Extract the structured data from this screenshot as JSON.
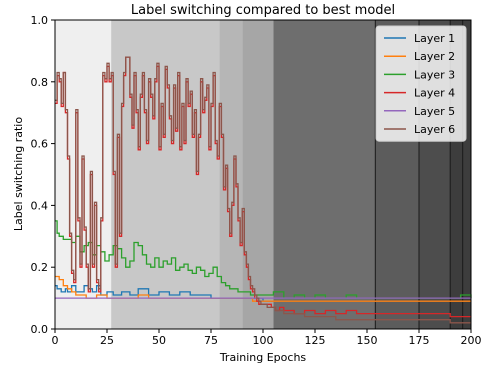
{
  "chart_data": {
    "type": "line",
    "title": "Label switching compared to best model",
    "xlabel": "Training Epochs",
    "ylabel": "Label switching ratio",
    "xlim": [
      0,
      200
    ],
    "ylim": [
      0,
      1.0
    ],
    "x_ticks": [
      0,
      25,
      50,
      75,
      100,
      125,
      150,
      175,
      200
    ],
    "y_ticks": [
      0.0,
      0.2,
      0.4,
      0.6,
      0.8,
      1.0
    ],
    "x_tick_labels": [
      "0",
      "25",
      "50",
      "75",
      "100",
      "125",
      "150",
      "175",
      "200"
    ],
    "y_tick_labels": [
      "0.0",
      "0.2",
      "0.4",
      "0.6",
      "0.8",
      "1.0"
    ],
    "legend_position": "top-right",
    "grid": false,
    "background_bands": [
      {
        "x_start": 0,
        "x_end": 27,
        "color": "#efefef"
      },
      {
        "x_start": 27,
        "x_end": 79,
        "color": "#c8c8c8"
      },
      {
        "x_start": 79,
        "x_end": 90,
        "color": "#b6b6b6"
      },
      {
        "x_start": 90,
        "x_end": 105,
        "color": "#a6a6a6"
      },
      {
        "x_start": 105,
        "x_end": 154,
        "color": "#6e6e6e"
      },
      {
        "x_start": 154,
        "x_end": 175,
        "color": "#5c5c5c"
      },
      {
        "x_start": 175,
        "x_end": 190,
        "color": "#4d4d4d"
      },
      {
        "x_start": 190,
        "x_end": 200,
        "color": "#3d3d3d"
      }
    ],
    "band_separators": [
      154,
      175,
      190,
      196
    ],
    "series": [
      {
        "name": "Layer 1",
        "color": "#1f77b4",
        "x": [
          0,
          1,
          3,
          5,
          6,
          8,
          10,
          12,
          14,
          16,
          18,
          20,
          22,
          25,
          28,
          32,
          36,
          40,
          45,
          50,
          55,
          60,
          65,
          70,
          75,
          80,
          85,
          90,
          95,
          100,
          105,
          110,
          115,
          120,
          125,
          130,
          135,
          140,
          145,
          150,
          155,
          160,
          165,
          170,
          175,
          180,
          185,
          190,
          195,
          200
        ],
        "y": [
          0.14,
          0.13,
          0.12,
          0.13,
          0.12,
          0.14,
          0.12,
          0.12,
          0.14,
          0.13,
          0.12,
          0.14,
          0.11,
          0.12,
          0.11,
          0.12,
          0.11,
          0.13,
          0.11,
          0.12,
          0.11,
          0.12,
          0.11,
          0.11,
          0.1,
          0.1,
          0.1,
          0.1,
          0.1,
          0.09,
          0.09,
          0.09,
          0.09,
          0.09,
          0.09,
          0.09,
          0.09,
          0.09,
          0.09,
          0.09,
          0.09,
          0.09,
          0.09,
          0.09,
          0.09,
          0.09,
          0.09,
          0.09,
          0.09,
          0.09
        ]
      },
      {
        "name": "Layer 2",
        "color": "#ff7f0e",
        "x": [
          0,
          2,
          4,
          6,
          8,
          10,
          12,
          15,
          18,
          20,
          25,
          30,
          35,
          40,
          45,
          50,
          55,
          60,
          65,
          70,
          75,
          80,
          85,
          90,
          95,
          100,
          105,
          110,
          115,
          120,
          125,
          130,
          135,
          140,
          145,
          150,
          155,
          160,
          165,
          170,
          175,
          180,
          185,
          190,
          195,
          200
        ],
        "y": [
          0.17,
          0.16,
          0.14,
          0.13,
          0.12,
          0.11,
          0.11,
          0.1,
          0.1,
          0.11,
          0.1,
          0.1,
          0.1,
          0.11,
          0.1,
          0.1,
          0.1,
          0.1,
          0.1,
          0.1,
          0.1,
          0.1,
          0.1,
          0.1,
          0.09,
          0.09,
          0.09,
          0.09,
          0.09,
          0.09,
          0.09,
          0.09,
          0.09,
          0.09,
          0.09,
          0.09,
          0.09,
          0.09,
          0.09,
          0.09,
          0.09,
          0.09,
          0.09,
          0.09,
          0.09,
          0.09
        ]
      },
      {
        "name": "Layer 3",
        "color": "#2ca02c",
        "x": [
          0,
          1,
          2,
          4,
          6,
          8,
          10,
          12,
          14,
          16,
          18,
          20,
          22,
          24,
          26,
          28,
          30,
          32,
          34,
          36,
          38,
          40,
          42,
          44,
          46,
          48,
          50,
          52,
          54,
          56,
          58,
          60,
          62,
          64,
          66,
          68,
          70,
          72,
          74,
          76,
          78,
          80,
          82,
          84,
          86,
          88,
          90,
          92,
          94,
          96,
          98,
          100,
          105,
          110,
          115,
          120,
          125,
          130,
          135,
          140,
          145,
          150,
          155,
          160,
          165,
          170,
          175,
          180,
          185,
          190,
          195,
          200
        ],
        "y": [
          0.35,
          0.31,
          0.3,
          0.29,
          0.29,
          0.28,
          0.3,
          0.25,
          0.27,
          0.28,
          0.24,
          0.27,
          0.25,
          0.22,
          0.24,
          0.27,
          0.26,
          0.23,
          0.2,
          0.22,
          0.28,
          0.27,
          0.24,
          0.21,
          0.2,
          0.23,
          0.2,
          0.22,
          0.21,
          0.23,
          0.19,
          0.2,
          0.21,
          0.19,
          0.18,
          0.2,
          0.19,
          0.17,
          0.18,
          0.2,
          0.17,
          0.15,
          0.14,
          0.13,
          0.13,
          0.12,
          0.12,
          0.12,
          0.11,
          0.11,
          0.11,
          0.11,
          0.12,
          0.1,
          0.11,
          0.1,
          0.11,
          0.1,
          0.1,
          0.11,
          0.1,
          0.1,
          0.1,
          0.1,
          0.1,
          0.1,
          0.1,
          0.1,
          0.1,
          0.1,
          0.11,
          0.1
        ]
      },
      {
        "name": "Layer 4",
        "color": "#d62728",
        "x": [
          0,
          1,
          2,
          3,
          4,
          5,
          6,
          7,
          8,
          9,
          10,
          11,
          12,
          13,
          14,
          15,
          16,
          17,
          18,
          19,
          20,
          21,
          22,
          23,
          24,
          25,
          26,
          27,
          28,
          29,
          30,
          31,
          32,
          33,
          34,
          35,
          36,
          37,
          38,
          39,
          40,
          41,
          42,
          43,
          44,
          45,
          46,
          47,
          48,
          49,
          50,
          51,
          52,
          53,
          54,
          55,
          56,
          57,
          58,
          59,
          60,
          61,
          62,
          63,
          64,
          65,
          66,
          67,
          68,
          69,
          70,
          71,
          72,
          73,
          74,
          75,
          76,
          77,
          78,
          79,
          80,
          81,
          82,
          83,
          84,
          85,
          86,
          87,
          88,
          89,
          90,
          91,
          92,
          93,
          94,
          95,
          96,
          97,
          98,
          99,
          100,
          102,
          104,
          106,
          108,
          110,
          115,
          120,
          125,
          130,
          135,
          140,
          145,
          150,
          155,
          160,
          165,
          170,
          175,
          180,
          185,
          190,
          195,
          200
        ],
        "y": [
          0.73,
          0.82,
          0.8,
          0.72,
          0.83,
          0.7,
          0.55,
          0.3,
          0.18,
          0.15,
          0.7,
          0.35,
          0.2,
          0.55,
          0.32,
          0.2,
          0.12,
          0.5,
          0.2,
          0.4,
          0.15,
          0.12,
          0.35,
          0.82,
          0.8,
          0.85,
          0.8,
          0.82,
          0.5,
          0.2,
          0.62,
          0.3,
          0.72,
          0.82,
          0.88,
          0.88,
          0.75,
          0.65,
          0.82,
          0.7,
          0.58,
          0.75,
          0.82,
          0.7,
          0.6,
          0.8,
          0.75,
          0.68,
          0.8,
          0.85,
          0.58,
          0.72,
          0.62,
          0.84,
          0.78,
          0.68,
          0.6,
          0.78,
          0.64,
          0.82,
          0.58,
          0.72,
          0.6,
          0.8,
          0.72,
          0.76,
          0.62,
          0.7,
          0.5,
          0.62,
          0.8,
          0.7,
          0.74,
          0.78,
          0.58,
          0.72,
          0.82,
          0.6,
          0.55,
          0.72,
          0.62,
          0.45,
          0.52,
          0.38,
          0.3,
          0.4,
          0.55,
          0.46,
          0.35,
          0.27,
          0.38,
          0.24,
          0.2,
          0.16,
          0.13,
          0.12,
          0.1,
          0.09,
          0.08,
          0.08,
          0.08,
          0.08,
          0.07,
          0.06,
          0.07,
          0.06,
          0.05,
          0.06,
          0.05,
          0.06,
          0.05,
          0.06,
          0.05,
          0.05,
          0.05,
          0.05,
          0.05,
          0.05,
          0.05,
          0.05,
          0.05,
          0.04,
          0.04,
          0.04
        ]
      },
      {
        "name": "Layer 5",
        "color": "#9467bd",
        "x": [
          0,
          3,
          6,
          9,
          12,
          15,
          18,
          21,
          25,
          30,
          40,
          50,
          60,
          70,
          80,
          90,
          100,
          110,
          120,
          130,
          140,
          150,
          160,
          170,
          180,
          190,
          200
        ],
        "y": [
          0.1,
          0.1,
          0.1,
          0.1,
          0.1,
          0.1,
          0.1,
          0.1,
          0.1,
          0.1,
          0.1,
          0.1,
          0.1,
          0.1,
          0.1,
          0.1,
          0.1,
          0.1,
          0.1,
          0.1,
          0.1,
          0.1,
          0.1,
          0.1,
          0.1,
          0.1,
          0.1
        ]
      },
      {
        "name": "Layer 6",
        "color": "#8c564b",
        "x": [
          0,
          1,
          2,
          3,
          4,
          5,
          6,
          7,
          8,
          9,
          10,
          11,
          12,
          13,
          14,
          15,
          16,
          17,
          18,
          19,
          20,
          21,
          22,
          23,
          24,
          25,
          26,
          27,
          28,
          29,
          30,
          31,
          32,
          33,
          34,
          35,
          36,
          37,
          38,
          39,
          40,
          41,
          42,
          43,
          44,
          45,
          46,
          47,
          48,
          49,
          50,
          51,
          52,
          53,
          54,
          55,
          56,
          57,
          58,
          59,
          60,
          61,
          62,
          63,
          64,
          65,
          66,
          67,
          68,
          69,
          70,
          71,
          72,
          73,
          74,
          75,
          76,
          77,
          78,
          79,
          80,
          81,
          82,
          83,
          84,
          85,
          86,
          87,
          88,
          89,
          90,
          91,
          92,
          93,
          94,
          95,
          96,
          97,
          98,
          99,
          100,
          102,
          104,
          106,
          108,
          110,
          115,
          120,
          125,
          130,
          135,
          140,
          145,
          150,
          155,
          160,
          165,
          170,
          175,
          180,
          185,
          190,
          195,
          200
        ],
        "y": [
          0.74,
          0.83,
          0.81,
          0.73,
          0.83,
          0.71,
          0.56,
          0.31,
          0.19,
          0.16,
          0.71,
          0.36,
          0.21,
          0.56,
          0.33,
          0.21,
          0.13,
          0.51,
          0.21,
          0.41,
          0.16,
          0.13,
          0.36,
          0.83,
          0.81,
          0.86,
          0.81,
          0.83,
          0.51,
          0.21,
          0.63,
          0.31,
          0.73,
          0.83,
          0.88,
          0.88,
          0.76,
          0.66,
          0.83,
          0.71,
          0.59,
          0.76,
          0.83,
          0.71,
          0.61,
          0.81,
          0.76,
          0.69,
          0.81,
          0.86,
          0.59,
          0.73,
          0.63,
          0.85,
          0.79,
          0.69,
          0.61,
          0.79,
          0.65,
          0.83,
          0.59,
          0.73,
          0.61,
          0.81,
          0.73,
          0.77,
          0.63,
          0.71,
          0.51,
          0.63,
          0.81,
          0.71,
          0.75,
          0.79,
          0.59,
          0.73,
          0.83,
          0.61,
          0.56,
          0.73,
          0.63,
          0.46,
          0.53,
          0.39,
          0.31,
          0.41,
          0.56,
          0.47,
          0.36,
          0.28,
          0.39,
          0.25,
          0.21,
          0.17,
          0.14,
          0.13,
          0.11,
          0.1,
          0.09,
          0.08,
          0.08,
          0.07,
          0.07,
          0.06,
          0.06,
          0.05,
          0.05,
          0.04,
          0.04,
          0.04,
          0.03,
          0.03,
          0.03,
          0.03,
          0.03,
          0.03,
          0.03,
          0.03,
          0.03,
          0.03,
          0.03,
          0.02,
          0.02,
          0.02
        ]
      }
    ]
  }
}
